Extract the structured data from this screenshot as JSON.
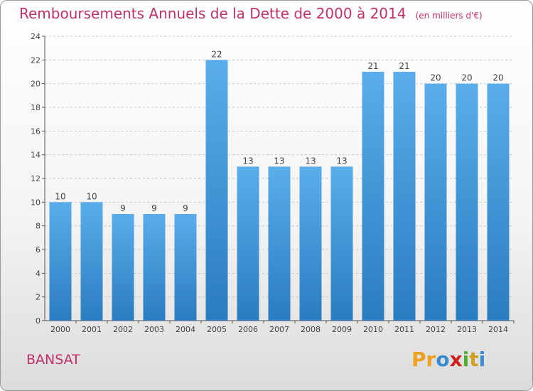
{
  "chart_data": {
    "type": "bar",
    "title": "Remboursements Annuels de la Dette de 2000 à 2014",
    "subtitle": "(en milliers d'€)",
    "categories": [
      "2000",
      "2001",
      "2002",
      "2003",
      "2004",
      "2005",
      "2006",
      "2007",
      "2008",
      "2009",
      "2010",
      "2011",
      "2012",
      "2013",
      "2014"
    ],
    "values": [
      10,
      10,
      9,
      9,
      9,
      22,
      13,
      13,
      13,
      13,
      21,
      21,
      20,
      20,
      20
    ],
    "ylim": [
      0,
      24
    ],
    "yticks": [
      0,
      2,
      4,
      6,
      8,
      10,
      12,
      14,
      16,
      18,
      20,
      22,
      24
    ],
    "grid": true,
    "bar_color": "#4a9fe0"
  },
  "commune": "BANSAT",
  "logo": {
    "letters": [
      "P",
      "r",
      "o",
      "x",
      "i",
      "t",
      "i"
    ],
    "colors": [
      "#f0a020",
      "#f0a020",
      "#3a8ad0",
      "#d02020",
      "#50b030",
      "#d0a020",
      "#3a8ad0"
    ]
  }
}
